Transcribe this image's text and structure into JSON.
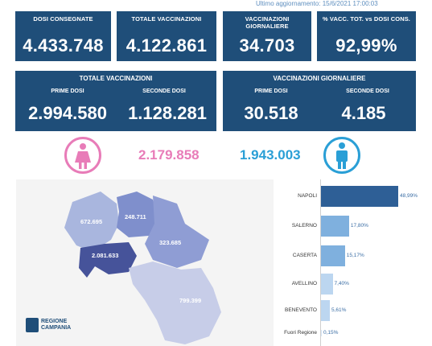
{
  "last_update": "Ultimo aggiornamento: 15/6/2021 17:00:03",
  "kpis": [
    {
      "label": "DOSI CONSEGNATE",
      "value": "4.433.748"
    },
    {
      "label": "TOTALE VACCINAZIONI",
      "value": "4.122.861"
    },
    {
      "label": "VACCINAZIONI GIORNALIERE",
      "value": "34.703"
    },
    {
      "label": "% VACC. TOT. vs DOSI CONS.",
      "value": "92,99%"
    }
  ],
  "totale": {
    "title": "TOTALE VACCINAZIONI",
    "prime_label": "PRIME DOSI",
    "prime_value": "2.994.580",
    "seconde_label": "SECONDE DOSI",
    "seconde_value": "1.128.281"
  },
  "giornaliere": {
    "title": "VACCINAZIONI GIORNALIERE",
    "prime_label": "PRIME DOSI",
    "prime_value": "30.518",
    "seconde_label": "SECONDE DOSI",
    "seconde_value": "4.185"
  },
  "gender": {
    "female_value": "2.179.858",
    "female_color": "#e87cb8",
    "male_value": "1.943.003",
    "male_color": "#2a9fd6"
  },
  "map": {
    "caserta": "672.695",
    "benevento": "248.711",
    "avellino": "323.685",
    "napoli": "2.081.633",
    "salerno": "799.399",
    "logo_line1": "REGIONE",
    "logo_line2": "CAMPANIA"
  },
  "chart_data": {
    "type": "bar",
    "orientation": "horizontal",
    "categories": [
      "NAPOLI",
      "SALERNO",
      "CASERTA",
      "AVELLINO",
      "BENEVENTO",
      "Fuori Regione"
    ],
    "values": [
      48.99,
      17.8,
      15.17,
      7.4,
      5.61,
      0.15
    ],
    "labels": [
      "48,99%",
      "17,80%",
      "15,17%",
      "7,40%",
      "5,61%",
      "0,15%"
    ],
    "colors": [
      "#2e5f96",
      "#7fb0de",
      "#7fb0de",
      "#bcd6f0",
      "#bcd6f0",
      "#d6e6f6"
    ]
  }
}
